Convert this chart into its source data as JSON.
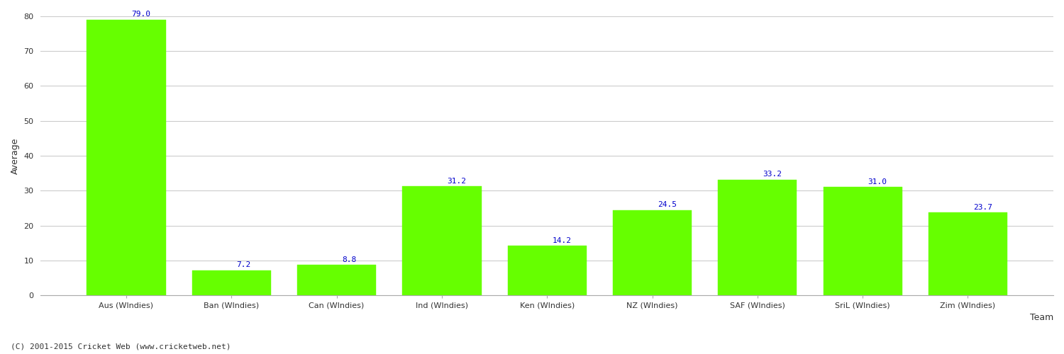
{
  "categories": [
    "Aus (WIndies)",
    "Ban (WIndies)",
    "Can (WIndies)",
    "Ind (WIndies)",
    "Ken (WIndies)",
    "NZ (WIndies)",
    "SAF (WIndies)",
    "SriL (WIndies)",
    "Zim (WIndies)"
  ],
  "values": [
    79.0,
    7.2,
    8.8,
    31.2,
    14.2,
    24.5,
    33.2,
    31.0,
    23.7
  ],
  "bar_color": "#66ff00",
  "bar_edge_color": "#66ff00",
  "xlabel": "Team",
  "ylabel": "Average",
  "ylim": [
    0,
    80
  ],
  "yticks": [
    0,
    10,
    20,
    30,
    40,
    50,
    60,
    70,
    80
  ],
  "annotation_color": "#0000cc",
  "annotation_fontsize": 8.0,
  "axis_label_fontsize": 9,
  "tick_label_fontsize": 8,
  "background_color": "#ffffff",
  "grid_color": "#cccccc",
  "footer_text": "(C) 2001-2015 Cricket Web (www.cricketweb.net)",
  "footer_fontsize": 8,
  "footer_color": "#333333"
}
